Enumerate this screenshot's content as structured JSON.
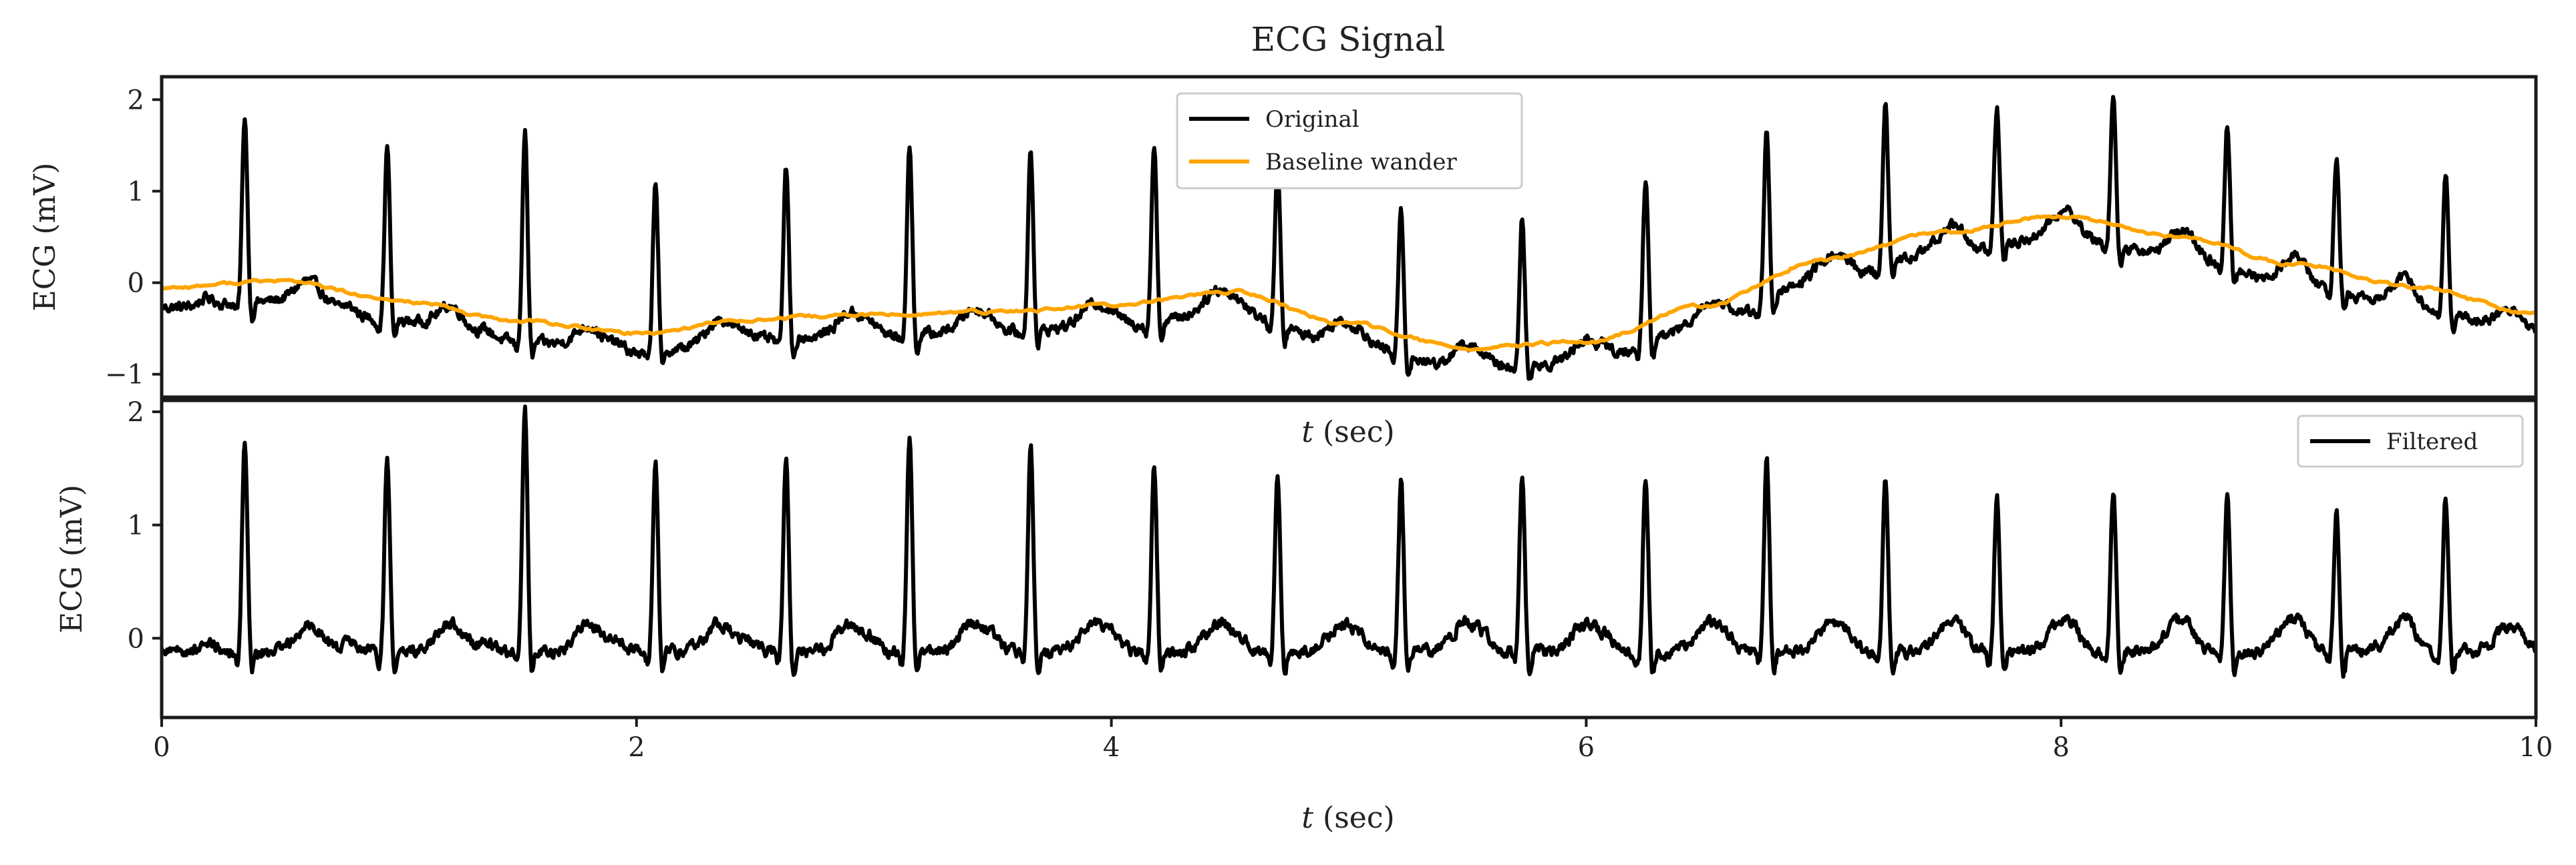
{
  "chart_data": [
    {
      "type": "line",
      "title": "ECG Signal",
      "xlabel_italic": "t",
      "xlabel_rest": " (sec)",
      "ylabel": "ECG (mV)",
      "xlim": [
        0,
        10
      ],
      "ylim": [
        -1.25,
        2.25
      ],
      "xticks": [],
      "yticks": [
        -1,
        0,
        1,
        2
      ],
      "ytick_labels": [
        "−1",
        "0",
        "1",
        "2"
      ],
      "legend_position": "top-center",
      "series": [
        {
          "name": "Original",
          "color": "#000000",
          "kind": "original",
          "peaks": [
            {
              "x": 0.35,
              "y": 1.82
            },
            {
              "x": 0.95,
              "y": 1.5
            },
            {
              "x": 1.53,
              "y": 1.65
            },
            {
              "x": 2.08,
              "y": 1.13
            },
            {
              "x": 2.63,
              "y": 1.25
            },
            {
              "x": 3.15,
              "y": 1.5
            },
            {
              "x": 3.66,
              "y": 1.48
            },
            {
              "x": 4.18,
              "y": 1.5
            },
            {
              "x": 4.7,
              "y": 1.25
            },
            {
              "x": 5.22,
              "y": 0.78
            },
            {
              "x": 5.73,
              "y": 0.7
            },
            {
              "x": 6.25,
              "y": 1.15
            },
            {
              "x": 6.76,
              "y": 1.7
            },
            {
              "x": 7.26,
              "y": 1.95
            },
            {
              "x": 7.73,
              "y": 1.92
            },
            {
              "x": 8.22,
              "y": 2.08
            },
            {
              "x": 8.7,
              "y": 1.73
            },
            {
              "x": 9.16,
              "y": 1.35
            },
            {
              "x": 9.62,
              "y": 1.2
            }
          ]
        },
        {
          "name": "Baseline wander",
          "color": "#ffa500",
          "kind": "baseline",
          "x": [
            0,
            0.5,
            1.0,
            1.5,
            2.0,
            2.5,
            3.0,
            3.5,
            4.0,
            4.5,
            5.0,
            5.5,
            6.0,
            6.5,
            7.0,
            7.5,
            8.0,
            8.5,
            9.0,
            9.5,
            10.0
          ],
          "y": [
            -0.05,
            0.02,
            -0.2,
            -0.42,
            -0.55,
            -0.4,
            -0.35,
            -0.32,
            -0.25,
            -0.1,
            -0.45,
            -0.72,
            -0.65,
            -0.25,
            0.25,
            0.55,
            0.72,
            0.5,
            0.2,
            -0.05,
            -0.35
          ]
        }
      ]
    },
    {
      "type": "line",
      "xlabel_italic": "t",
      "xlabel_rest": " (sec)",
      "ylabel": "ECG (mV)",
      "xlim": [
        0,
        10
      ],
      "ylim": [
        -0.7,
        2.1
      ],
      "xticks": [
        0,
        2,
        4,
        6,
        8,
        10
      ],
      "yticks": [
        0,
        1,
        2
      ],
      "ytick_labels": [
        "0",
        "1",
        "2"
      ],
      "legend_position": "top-right",
      "series": [
        {
          "name": "Filtered",
          "color": "#000000",
          "kind": "filtered",
          "peaks": [
            {
              "x": 0.35,
              "y": 1.75
            },
            {
              "x": 0.95,
              "y": 1.6
            },
            {
              "x": 1.53,
              "y": 2.05
            },
            {
              "x": 2.08,
              "y": 1.55
            },
            {
              "x": 2.63,
              "y": 1.6
            },
            {
              "x": 3.15,
              "y": 1.78
            },
            {
              "x": 3.66,
              "y": 1.72
            },
            {
              "x": 4.18,
              "y": 1.5
            },
            {
              "x": 4.7,
              "y": 1.45
            },
            {
              "x": 5.22,
              "y": 1.38
            },
            {
              "x": 5.73,
              "y": 1.43
            },
            {
              "x": 6.25,
              "y": 1.43
            },
            {
              "x": 6.76,
              "y": 1.58
            },
            {
              "x": 7.26,
              "y": 1.38
            },
            {
              "x": 7.73,
              "y": 1.22
            },
            {
              "x": 8.22,
              "y": 1.3
            },
            {
              "x": 8.7,
              "y": 1.25
            },
            {
              "x": 9.16,
              "y": 1.15
            },
            {
              "x": 9.62,
              "y": 1.25
            }
          ]
        }
      ]
    }
  ]
}
